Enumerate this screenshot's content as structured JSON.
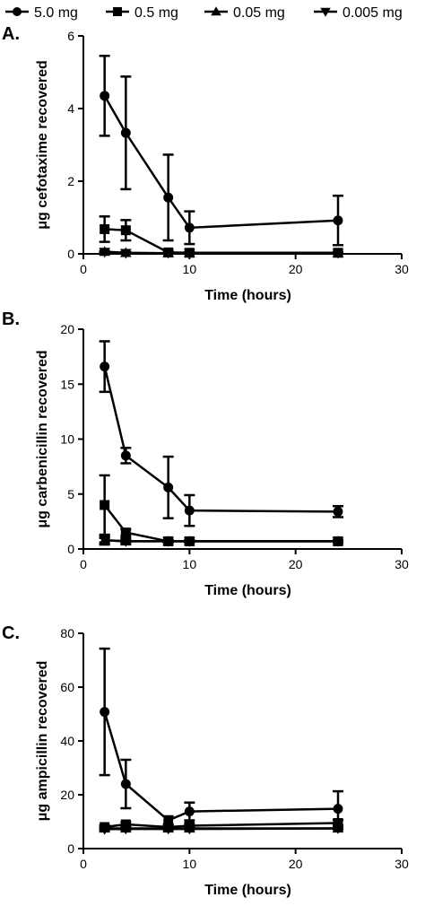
{
  "legend": {
    "entries": [
      {
        "label": "5.0 mg",
        "marker": "circle"
      },
      {
        "label": "0.5 mg",
        "marker": "square"
      },
      {
        "label": "0.05 mg",
        "marker": "triangle-up"
      },
      {
        "label": "0.005 mg",
        "marker": "triangle-down"
      }
    ]
  },
  "chart_data": [
    {
      "type": "line",
      "panel": "A.",
      "title": "",
      "xlabel": "Time (hours)",
      "ylabel": "μg cefotaxime recovered",
      "xlim": [
        0,
        30
      ],
      "ylim": [
        0,
        6
      ],
      "xticks": [
        0,
        10,
        20,
        30
      ],
      "yticks": [
        0,
        2,
        4,
        6
      ],
      "series": [
        {
          "name": "5.0 mg",
          "marker": "circle",
          "x": [
            2,
            4,
            8,
            10,
            24
          ],
          "y": [
            4.35,
            3.33,
            1.55,
            0.72,
            0.92
          ],
          "err": [
            1.1,
            1.55,
            1.18,
            0.45,
            0.68
          ]
        },
        {
          "name": "0.5 mg",
          "marker": "square",
          "x": [
            2,
            4,
            8,
            10,
            24
          ],
          "y": [
            0.68,
            0.65,
            0.04,
            0.03,
            0.03
          ],
          "err": [
            0.35,
            0.28,
            0.03,
            0.02,
            0.02
          ]
        },
        {
          "name": "0.05 mg",
          "marker": "triangle-up",
          "x": [
            2,
            4,
            8,
            10,
            24
          ],
          "y": [
            0.06,
            0.03,
            0.02,
            0.02,
            0.02
          ],
          "err": [
            0.02,
            0.02,
            0.01,
            0.01,
            0.01
          ]
        },
        {
          "name": "0.005 mg",
          "marker": "triangle-down",
          "x": [
            2,
            4,
            8,
            10,
            24
          ],
          "y": [
            0.05,
            0.02,
            0.02,
            0.02,
            0.02
          ],
          "err": [
            0.01,
            0.01,
            0.01,
            0.01,
            0.01
          ]
        }
      ]
    },
    {
      "type": "line",
      "panel": "B.",
      "title": "",
      "xlabel": "Time (hours)",
      "ylabel": "μg carbenicillin recovered",
      "xlim": [
        0,
        30
      ],
      "ylim": [
        0,
        20
      ],
      "xticks": [
        0,
        10,
        20,
        30
      ],
      "yticks": [
        0,
        5,
        10,
        15,
        20
      ],
      "series": [
        {
          "name": "5.0 mg",
          "marker": "circle",
          "x": [
            2,
            4,
            8,
            10,
            24
          ],
          "y": [
            16.6,
            8.5,
            5.6,
            3.5,
            3.4
          ],
          "err": [
            2.3,
            0.7,
            2.8,
            1.4,
            0.5
          ]
        },
        {
          "name": "0.5 mg",
          "marker": "square",
          "x": [
            2,
            4,
            8,
            10,
            24
          ],
          "y": [
            4.0,
            1.5,
            0.7,
            0.7,
            0.7
          ],
          "err": [
            2.7,
            0.3,
            0.1,
            0.1,
            0.1
          ]
        },
        {
          "name": "0.05 mg",
          "marker": "triangle-up",
          "x": [
            2,
            4,
            8,
            10,
            24
          ],
          "y": [
            0.8,
            0.7,
            0.7,
            0.7,
            0.7
          ],
          "err": [
            0.4,
            0.2,
            0.1,
            0.1,
            0.1
          ]
        },
        {
          "name": "0.005 mg",
          "marker": "triangle-down",
          "x": [
            2,
            4,
            8,
            10,
            24
          ],
          "y": [
            0.8,
            0.7,
            0.7,
            0.7,
            0.7
          ],
          "err": [
            0.2,
            0.1,
            0.1,
            0.1,
            0.1
          ]
        }
      ]
    },
    {
      "type": "line",
      "panel": "C.",
      "title": "",
      "xlabel": "Time (hours)",
      "ylabel": "μg ampicillin recovered",
      "xlim": [
        0,
        30
      ],
      "ylim": [
        0,
        80
      ],
      "xticks": [
        0,
        10,
        20,
        30
      ],
      "yticks": [
        0,
        20,
        40,
        60,
        80
      ],
      "series": [
        {
          "name": "5.0 mg",
          "marker": "circle",
          "x": [
            2,
            4,
            8,
            10,
            24
          ],
          "y": [
            50.8,
            24.0,
            10.5,
            13.8,
            14.8
          ],
          "err": [
            23.5,
            9.0,
            1.5,
            3.3,
            6.5
          ]
        },
        {
          "name": "0.5 mg",
          "marker": "square",
          "x": [
            2,
            4,
            8,
            10,
            24
          ],
          "y": [
            8.0,
            9.0,
            8.0,
            8.5,
            9.5
          ],
          "err": [
            0.6,
            0.8,
            0.5,
            0.8,
            1.2
          ]
        },
        {
          "name": "0.05 mg",
          "marker": "triangle-up",
          "x": [
            2,
            4,
            8,
            10,
            24
          ],
          "y": [
            7.5,
            7.5,
            7.5,
            7.5,
            7.5
          ],
          "err": [
            0.4,
            0.4,
            0.4,
            0.4,
            0.4
          ]
        },
        {
          "name": "0.005 mg",
          "marker": "triangle-down",
          "x": [
            2,
            4,
            8,
            10,
            24
          ],
          "y": [
            7.2,
            7.3,
            7.3,
            7.3,
            7.5
          ],
          "err": [
            0.3,
            0.3,
            0.3,
            0.3,
            0.3
          ]
        }
      ]
    }
  ]
}
